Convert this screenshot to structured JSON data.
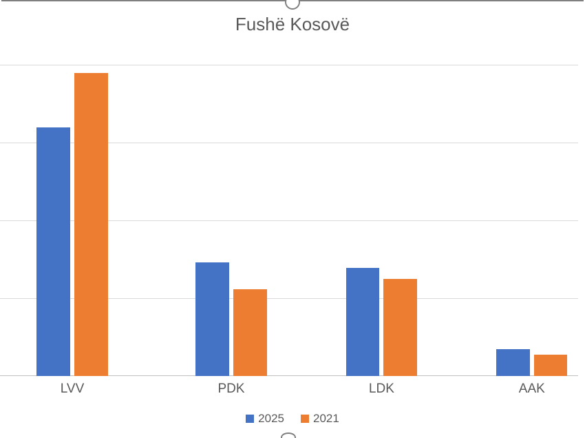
{
  "chart": {
    "type": "bar",
    "title": "Fushë Kosovë",
    "title_fontsize": 26,
    "title_color": "#595959",
    "background_color": "#ffffff",
    "grid_color": "#d9d9d9",
    "baseline_color": "#bfbfbf",
    "label_color": "#595959",
    "label_fontsize": 19,
    "legend_fontsize": 17,
    "y_max": 60,
    "gridlines_from_top_percent": [
      4,
      28,
      52,
      76
    ],
    "categories": [
      "LVV",
      "PDK",
      "LDK",
      "AAK"
    ],
    "category_centers_percent": [
      12.5,
      40,
      66,
      92
    ],
    "series": [
      {
        "name": "2025",
        "color": "#4472c4",
        "values": [
          46,
          21,
          20,
          5
        ]
      },
      {
        "name": "2021",
        "color": "#ed7d31",
        "values": [
          56,
          16,
          18,
          4
        ]
      }
    ],
    "bar_width_percent": 5.8,
    "bar_gap_percent": 0.7
  },
  "slider": {
    "border_color": "#7f7f7f",
    "handle_fill": "#ffffff"
  }
}
